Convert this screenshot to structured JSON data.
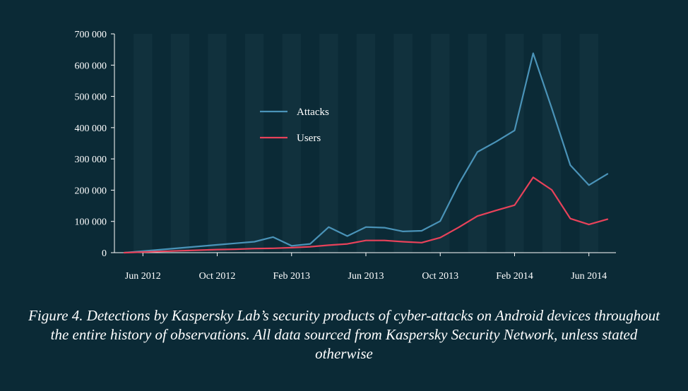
{
  "caption": "Figure 4. Detections by Kaspersky Lab’s security products of cyber-attacks on Android devices throughout the entire history of observations. All data sourced from Kaspersky Security Network, unless stated otherwise",
  "colors": {
    "background": "#0b2a36",
    "stripe": "#11313d",
    "attacks": "#4a93b8",
    "users": "#e8425a",
    "axis": "#ffffff"
  },
  "chart_data": {
    "type": "line",
    "title": "",
    "xlabel": "",
    "ylabel": "",
    "grid": false,
    "legend_position": "center",
    "ylim": [
      0,
      700000
    ],
    "y_ticks": [
      0,
      100000,
      200000,
      300000,
      400000,
      500000,
      600000,
      700000
    ],
    "y_tick_labels": [
      "0",
      "100 000",
      "200 000",
      "300 000",
      "400 000",
      "500 000",
      "600 000",
      "700 000"
    ],
    "x": [
      "2012-05",
      "2012-06",
      "2012-07",
      "2012-08",
      "2012-09",
      "2012-10",
      "2012-11",
      "2012-12",
      "2013-01",
      "2013-02",
      "2013-03",
      "2013-04",
      "2013-05",
      "2013-06",
      "2013-07",
      "2013-08",
      "2013-09",
      "2013-10",
      "2013-11",
      "2013-12",
      "2014-01",
      "2014-02",
      "2014-03",
      "2014-04",
      "2014-05",
      "2014-06",
      "2014-07"
    ],
    "x_tick_positions": [
      "2012-06",
      "2012-10",
      "2013-02",
      "2013-06",
      "2013-10",
      "2014-02",
      "2014-06"
    ],
    "x_tick_labels": [
      "Jun 2012",
      "Oct 2012",
      "Feb 2013",
      "Jun 2013",
      "Oct 2013",
      "Feb 2014",
      "Jun 2014"
    ],
    "series": [
      {
        "name": "Attacks",
        "color": "#4a93b8",
        "values": [
          0,
          5000,
          10000,
          15000,
          20000,
          25000,
          30000,
          35000,
          50000,
          22000,
          28000,
          82000,
          53000,
          82000,
          80000,
          68000,
          70000,
          101000,
          220000,
          322000,
          355000,
          391000,
          638000,
          462000,
          280000,
          216000,
          252000
        ]
      },
      {
        "name": "Users",
        "color": "#e8425a",
        "values": [
          0,
          2000,
          4000,
          6000,
          8000,
          10000,
          11000,
          13000,
          14000,
          16000,
          19000,
          24000,
          28000,
          39000,
          39000,
          35000,
          32000,
          48000,
          81000,
          117000,
          135000,
          152000,
          241000,
          201000,
          109000,
          90000,
          107000
        ]
      }
    ]
  }
}
